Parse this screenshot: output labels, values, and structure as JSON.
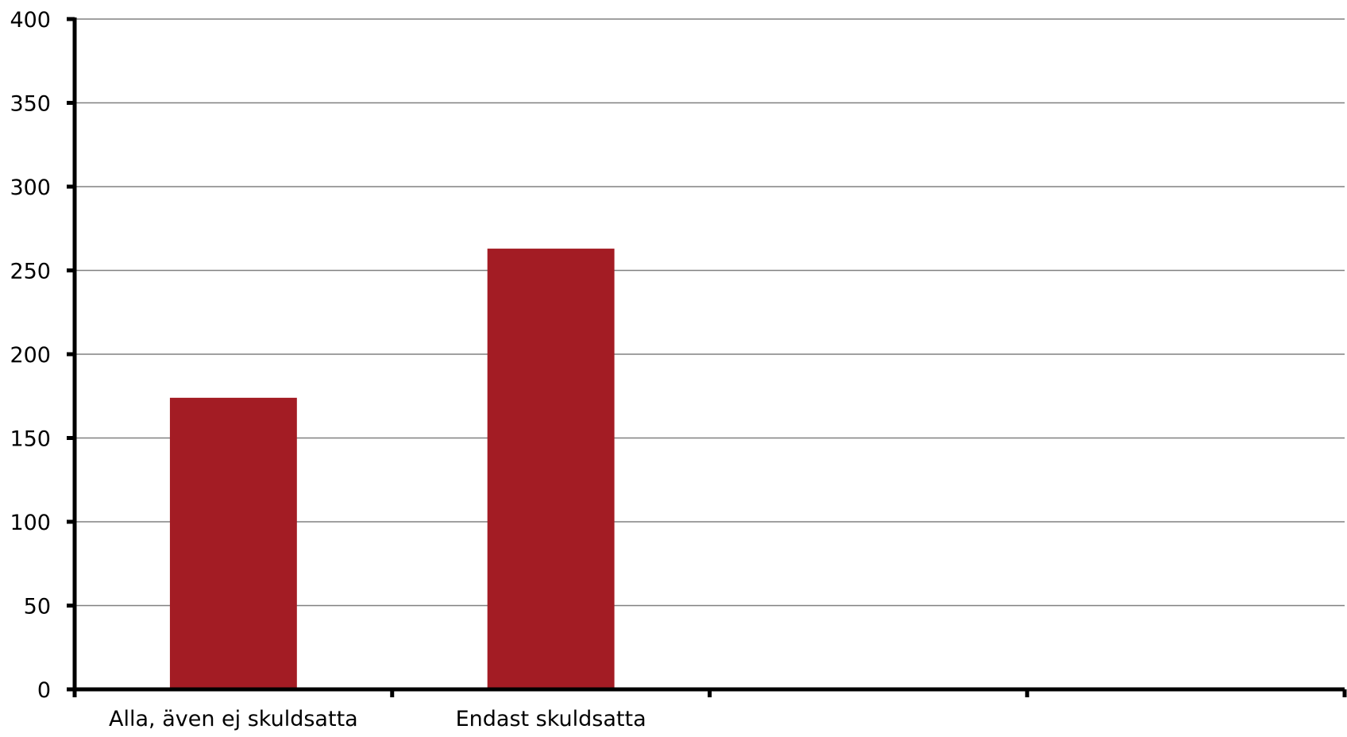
{
  "chart_data": {
    "type": "bar",
    "categories": [
      "Alla, även ej skuldsatta",
      "Endast skuldsatta",
      "",
      ""
    ],
    "values": [
      174,
      263,
      null,
      null
    ],
    "ylim": [
      0,
      400
    ],
    "y_ticks": [
      "0",
      "50",
      "100",
      "150",
      "200",
      "250",
      "300",
      "350",
      "400"
    ],
    "grid": true,
    "legend": "none",
    "colors": {
      "bar": "#A31C24",
      "grid": "#808080",
      "axis": "#000000"
    }
  }
}
